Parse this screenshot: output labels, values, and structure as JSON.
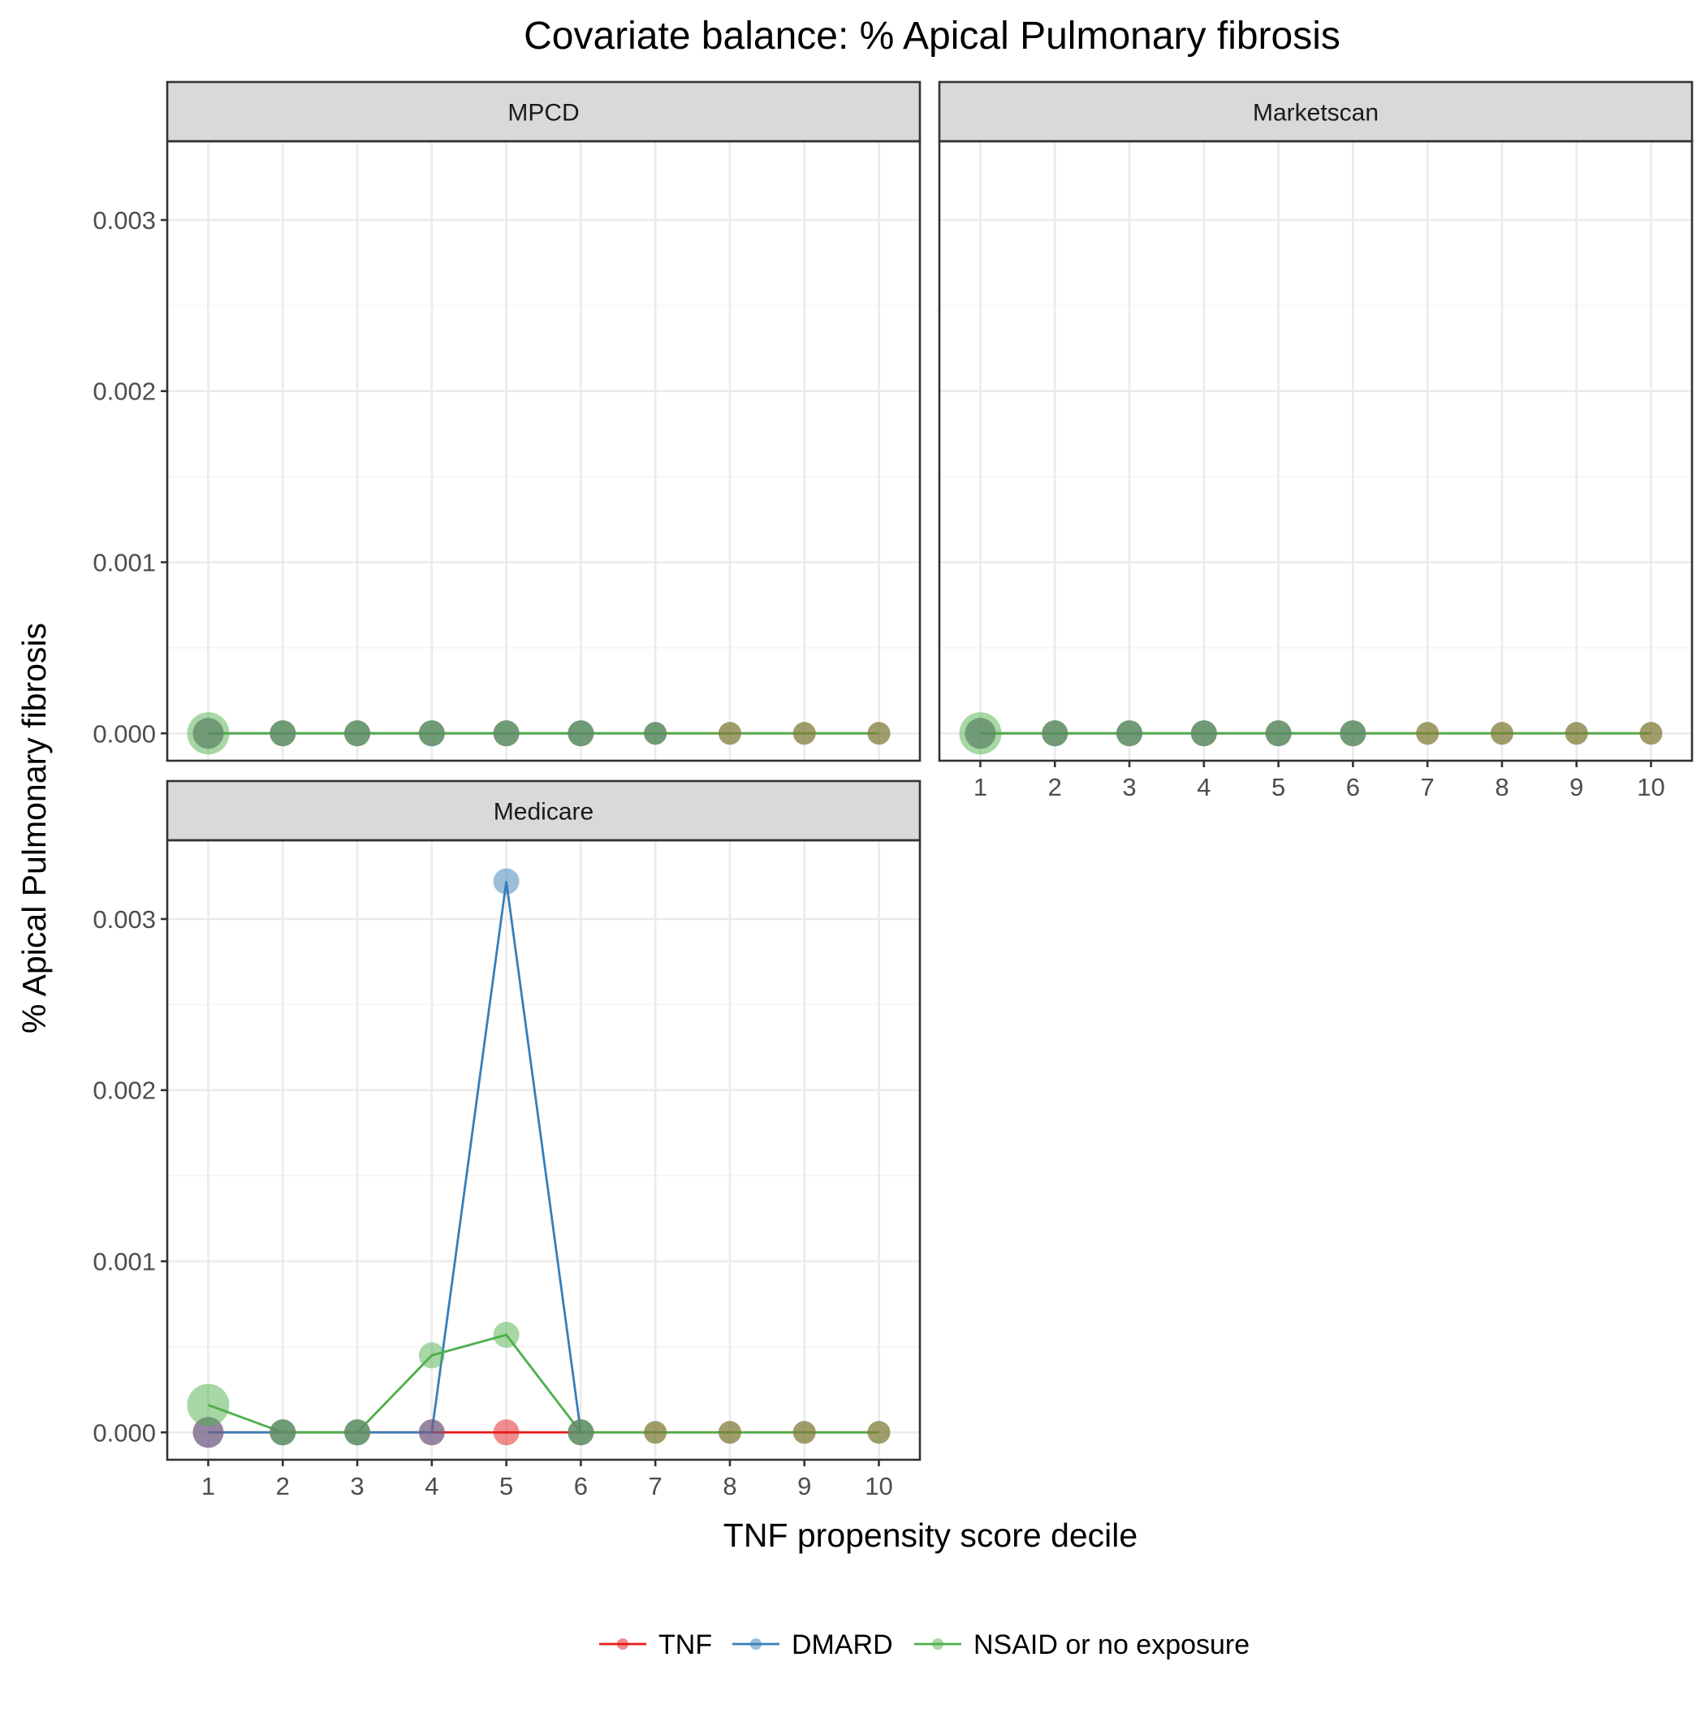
{
  "chart_data": {
    "type": "line",
    "title": "Covariate balance: % Apical Pulmonary fibrosis",
    "xlabel": "TNF propensity score decile",
    "ylabel": "% Apical Pulmonary fibrosis",
    "x": [
      1,
      2,
      3,
      4,
      5,
      6,
      7,
      8,
      9,
      10
    ],
    "x_ticks": [
      "1",
      "2",
      "3",
      "4",
      "5",
      "6",
      "7",
      "8",
      "9",
      "10"
    ],
    "ylim": [
      -0.00016,
      0.00346
    ],
    "y_ticks": [
      "0.000",
      "0.001",
      "0.002",
      "0.003"
    ],
    "grid": true,
    "legend_position": "bottom",
    "colors": {
      "TNF": "#E41A1C",
      "DMARD": "#377EB8",
      "NSAID or no exposure": "#4DAF4A"
    },
    "panels": [
      {
        "name": "MPCD",
        "series": [
          {
            "name": "TNF",
            "values": [
              0,
              0,
              0,
              0,
              0,
              0,
              0,
              0,
              0,
              0
            ]
          },
          {
            "name": "DMARD",
            "values": [
              0,
              0,
              0,
              0,
              0,
              0,
              0,
              null,
              null,
              null
            ]
          },
          {
            "name": "NSAID or no exposure",
            "values": [
              0,
              0,
              0,
              0,
              0,
              0,
              0,
              0,
              0,
              0
            ]
          }
        ]
      },
      {
        "name": "Marketscan",
        "series": [
          {
            "name": "TNF",
            "values": [
              0,
              0,
              0,
              0,
              0,
              0,
              0,
              0,
              0,
              0
            ]
          },
          {
            "name": "DMARD",
            "values": [
              0,
              0,
              0,
              0,
              0,
              0,
              null,
              null,
              null,
              null
            ]
          },
          {
            "name": "NSAID or no exposure",
            "values": [
              0,
              0,
              0,
              0,
              0,
              0,
              0,
              0,
              0,
              0
            ]
          }
        ]
      },
      {
        "name": "Medicare",
        "series": [
          {
            "name": "TNF",
            "values": [
              0,
              0,
              0,
              0,
              0,
              0,
              0,
              0,
              0,
              0
            ]
          },
          {
            "name": "DMARD",
            "values": [
              0,
              0,
              0,
              0,
              0.00322,
              0,
              null,
              null,
              null,
              null
            ]
          },
          {
            "name": "NSAID or no exposure",
            "values": [
              0.00016,
              0,
              0,
              0.00045,
              0.00057,
              0,
              0,
              0,
              0,
              0
            ]
          }
        ]
      }
    ],
    "legend": [
      "TNF",
      "DMARD",
      "NSAID or no exposure"
    ]
  }
}
